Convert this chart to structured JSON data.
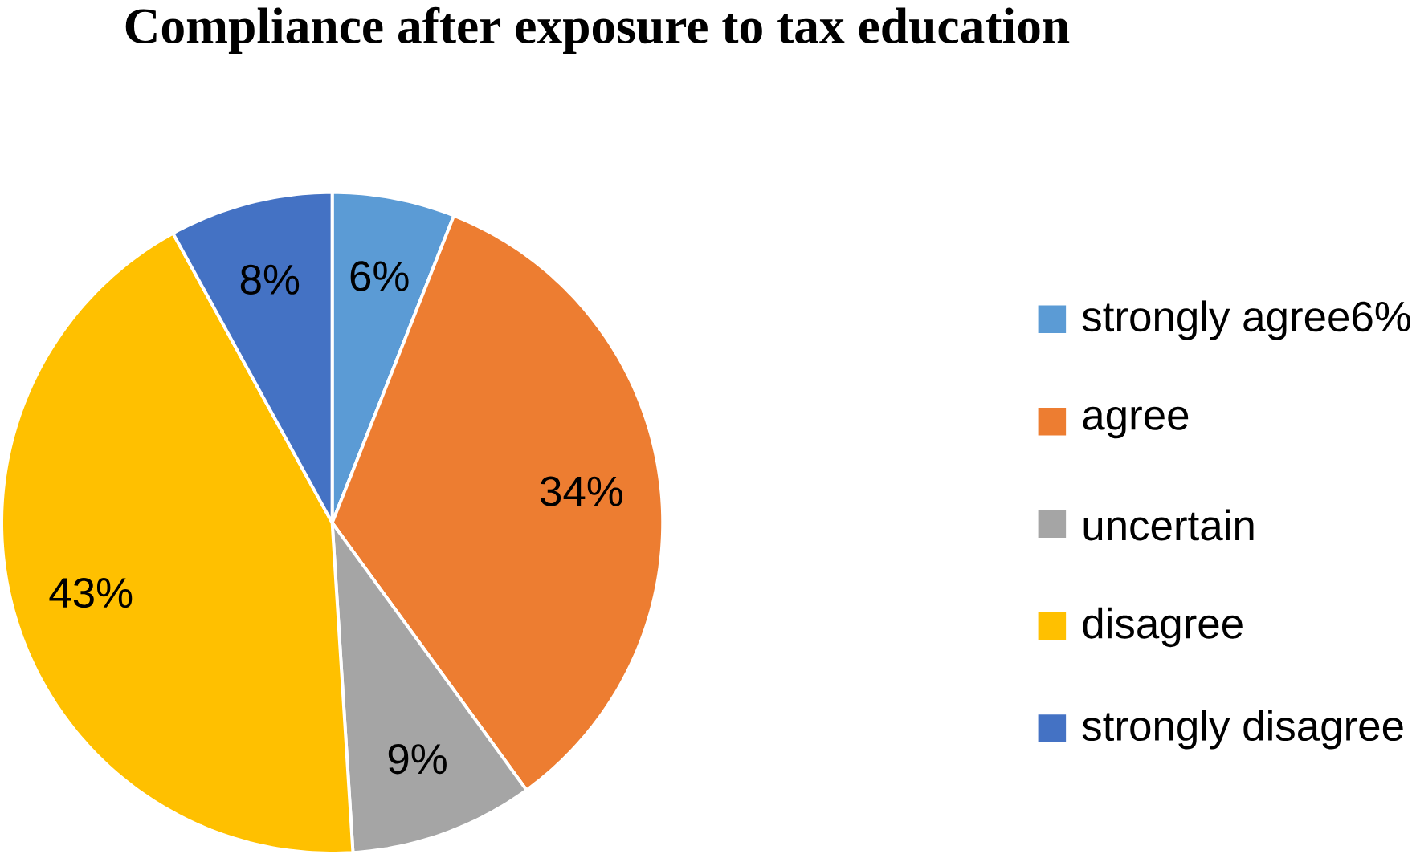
{
  "chart_data": {
    "type": "pie",
    "title": "Compliance after exposure to tax education",
    "categories": [
      "strongly agree6%",
      "agree",
      "uncertain",
      "disagree",
      "strongly disagree"
    ],
    "values": [
      6,
      34,
      9,
      43,
      8
    ],
    "value_labels": [
      "6%",
      "34%",
      "9%",
      "43%",
      "8%"
    ],
    "colors": [
      "#5b9bd5",
      "#ed7d31",
      "#a5a5a5",
      "#ffc000",
      "#4472c4"
    ],
    "legend": "right"
  }
}
